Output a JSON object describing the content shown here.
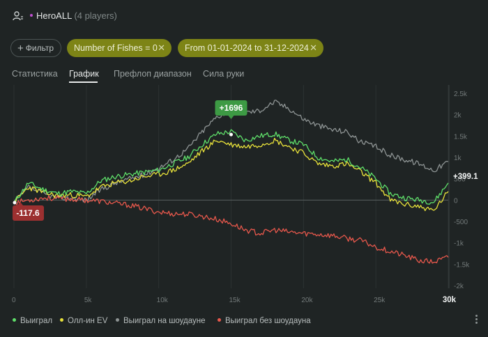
{
  "header": {
    "title": "HeroALL",
    "players": "(4 players)",
    "user_icon": "user-icon"
  },
  "filters": {
    "add_label": "Фильтр",
    "chips": [
      {
        "label": "Number of Fishes = 0"
      },
      {
        "label": "From 01-01-2024 to 31-12-2024"
      }
    ]
  },
  "tabs": [
    {
      "label": "Статистика",
      "active": false
    },
    {
      "label": "График",
      "active": true
    },
    {
      "label": "Префлоп диапазон",
      "active": false
    },
    {
      "label": "Сила руки",
      "active": false
    }
  ],
  "chart_data": {
    "type": "line",
    "xlim": [
      0,
      30000
    ],
    "ylim": [
      -2000,
      2500
    ],
    "x_ticks": [
      "0",
      "5k",
      "10k",
      "15k",
      "20k",
      "25k",
      "30k"
    ],
    "y_ticks": [
      "2.5k",
      "2k",
      "1.5k",
      "1k",
      "500",
      "0",
      "-500",
      "-1k",
      "-1.5k",
      "-2k"
    ],
    "max_label": "+1696",
    "min_label": "-117.6",
    "end_label": "+399.1",
    "colors": {
      "won": "#5fe06a",
      "allin_ev": "#e8e23a",
      "showdown": "#8e9494",
      "non_showdown": "#e8584c",
      "max_badge": "#3d9a44",
      "min_badge": "#9c3030"
    },
    "series": [
      {
        "name": "Выиграл",
        "key": "won",
        "x": [
          0,
          1000,
          2000,
          3000,
          4000,
          5000,
          6000,
          7000,
          8000,
          9000,
          10000,
          11000,
          12000,
          13000,
          14000,
          15000,
          16000,
          17000,
          18000,
          19000,
          20000,
          21000,
          22000,
          23000,
          24000,
          25000,
          26000,
          27000,
          28000,
          29000,
          30000
        ],
        "y": [
          -60,
          400,
          250,
          150,
          200,
          150,
          450,
          550,
          600,
          650,
          700,
          850,
          1000,
          1300,
          1550,
          1600,
          1400,
          1500,
          1550,
          1400,
          1300,
          1000,
          900,
          950,
          750,
          500,
          150,
          50,
          0,
          -50,
          400
        ]
      },
      {
        "name": "Олл-ин EV",
        "key": "allin_ev",
        "x": [
          0,
          1000,
          2000,
          3000,
          4000,
          5000,
          6000,
          7000,
          8000,
          9000,
          10000,
          11000,
          12000,
          13000,
          14000,
          15000,
          16000,
          17000,
          18000,
          19000,
          20000,
          21000,
          22000,
          23000,
          24000,
          25000,
          26000,
          27000,
          28000,
          29000,
          30000
        ],
        "y": [
          -60,
          300,
          180,
          100,
          120,
          80,
          300,
          400,
          450,
          550,
          600,
          700,
          850,
          1150,
          1400,
          1300,
          1250,
          1300,
          1400,
          1250,
          1100,
          850,
          800,
          850,
          650,
          400,
          0,
          -100,
          -150,
          -250,
          200
        ]
      },
      {
        "name": "Выиграл на шоудауне",
        "key": "showdown",
        "x": [
          0,
          1000,
          2000,
          3000,
          4000,
          5000,
          6000,
          7000,
          8000,
          9000,
          10000,
          11000,
          12000,
          13000,
          14000,
          15000,
          16000,
          17000,
          18000,
          19000,
          20000,
          21000,
          22000,
          23000,
          24000,
          25000,
          26000,
          27000,
          28000,
          29000,
          30000
        ],
        "y": [
          -60,
          300,
          150,
          50,
          50,
          0,
          250,
          400,
          500,
          600,
          750,
          950,
          1200,
          1600,
          1950,
          2100,
          2050,
          2100,
          2300,
          2150,
          1900,
          1750,
          1650,
          1600,
          1350,
          1250,
          1050,
          950,
          850,
          700,
          900
        ]
      },
      {
        "name": "Выиграл без шоудауна",
        "key": "non_showdown",
        "x": [
          0,
          1000,
          2000,
          3000,
          4000,
          5000,
          6000,
          7000,
          8000,
          9000,
          10000,
          11000,
          12000,
          13000,
          14000,
          15000,
          16000,
          17000,
          18000,
          19000,
          20000,
          21000,
          22000,
          23000,
          24000,
          25000,
          26000,
          27000,
          28000,
          29000,
          30000
        ],
        "y": [
          -60,
          0,
          50,
          40,
          20,
          0,
          -30,
          -80,
          -120,
          -200,
          -280,
          -320,
          -330,
          -380,
          -450,
          -550,
          -700,
          -780,
          -700,
          -750,
          -780,
          -800,
          -830,
          -900,
          -950,
          -1100,
          -1200,
          -1300,
          -1420,
          -1450,
          -1340
        ]
      }
    ]
  },
  "legend_menu_icon": "kebab-menu-icon"
}
